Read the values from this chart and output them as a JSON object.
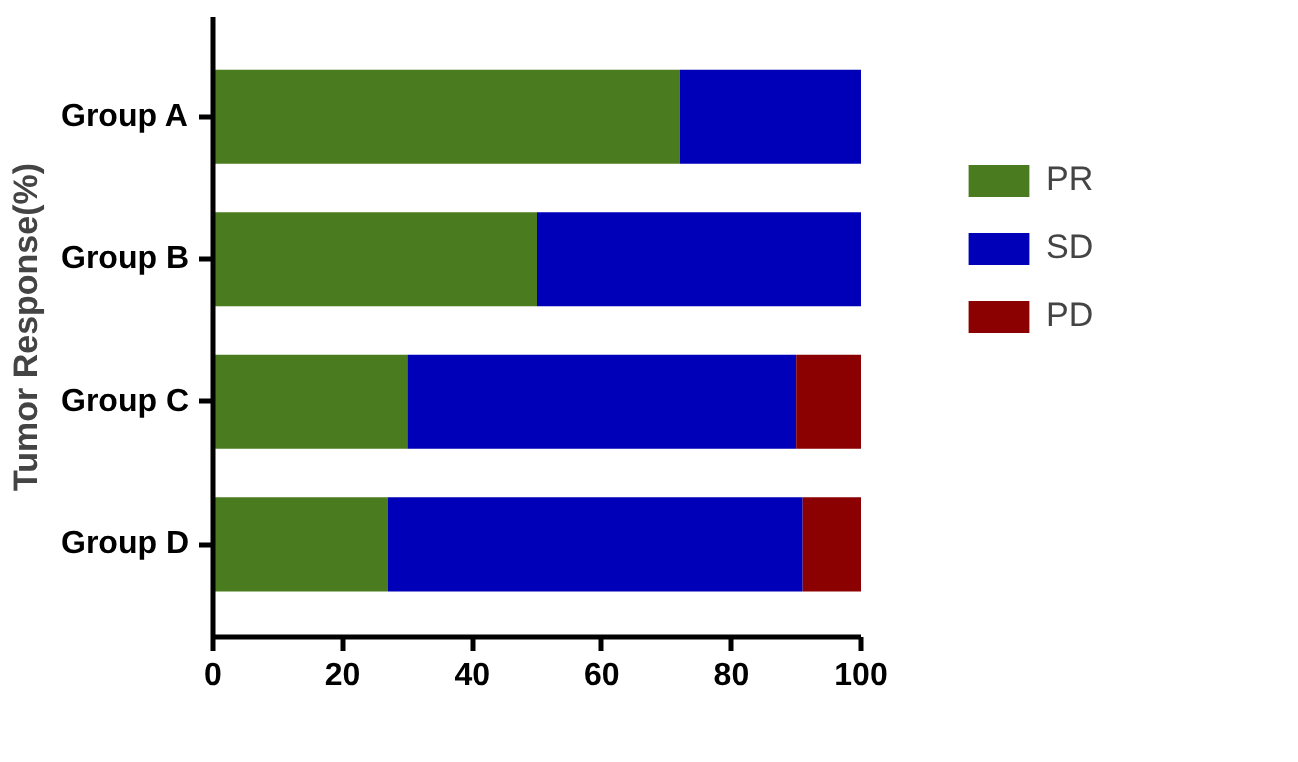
{
  "chart_data": {
    "type": "bar",
    "orientation": "horizontal",
    "stacked": true,
    "ylabel": "Tumor Response(%)",
    "categories": [
      "Group A",
      "Group B",
      "Group C",
      "Group D"
    ],
    "series": [
      {
        "name": "PR",
        "color": "#4a7c1f",
        "values": [
          72,
          50,
          30,
          27
        ]
      },
      {
        "name": "SD",
        "color": "#0000b8",
        "values": [
          28,
          50,
          60,
          64
        ]
      },
      {
        "name": "PD",
        "color": "#8b0000",
        "values": [
          0,
          0,
          10,
          9
        ]
      }
    ],
    "xlim": [
      0,
      100
    ],
    "xticks": [
      0,
      20,
      40,
      60,
      80,
      100
    ],
    "grid": false,
    "legend": "right"
  }
}
